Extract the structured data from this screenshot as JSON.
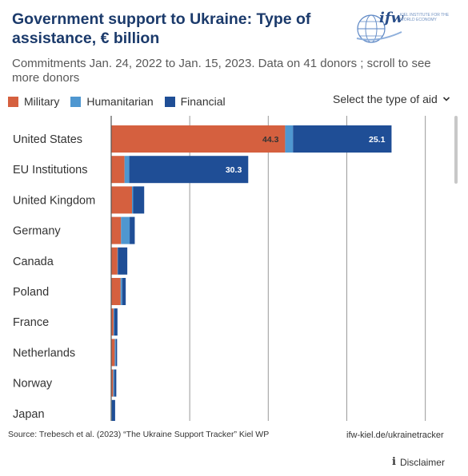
{
  "header": {
    "title": "Government support to Ukraine: Type of assistance, € billion",
    "subtitle": "Commitments Jan. 24, 2022 to Jan. 15, 2023. Data on 41 donors ; scroll to see more donors"
  },
  "logo": {
    "name": "ifw",
    "subtext": "KIEL INSTITUTE FOR THE WORLD ECONOMY",
    "icon": "globe-logo-icon"
  },
  "legend": [
    {
      "label": "Military",
      "color": "#d5603f"
    },
    {
      "label": "Humanitarian",
      "color": "#4f97d0"
    },
    {
      "label": "Financial",
      "color": "#1f4e96"
    }
  ],
  "select": {
    "label": "Select the type of aid",
    "icon": "chevron-down-icon"
  },
  "chart_data": {
    "type": "bar",
    "orientation": "horizontal",
    "stacked": true,
    "categories": [
      "United States",
      "EU Institutions",
      "United Kingdom",
      "Germany",
      "Canada",
      "Poland",
      "France",
      "Netherlands",
      "Norway",
      "Japan"
    ],
    "series": [
      {
        "name": "Military",
        "color": "#d5603f",
        "values": [
          44.3,
          3.4,
          5.3,
          2.5,
          1.6,
          2.4,
          0.6,
          0.9,
          0.5,
          0.0
        ]
      },
      {
        "name": "Humanitarian",
        "color": "#4f97d0",
        "values": [
          2.0,
          1.2,
          0.3,
          2.2,
          0.1,
          0.4,
          0.2,
          0.3,
          0.3,
          0.2
        ]
      },
      {
        "name": "Financial",
        "color": "#1f4e96",
        "values": [
          25.1,
          30.3,
          2.8,
          1.3,
          2.4,
          0.9,
          0.8,
          0.3,
          0.5,
          0.8
        ]
      }
    ],
    "data_labels": [
      {
        "category": "United States",
        "series": "Military",
        "text": "44.3"
      },
      {
        "category": "United States",
        "series": "Financial",
        "text": "25.1"
      },
      {
        "category": "EU Institutions",
        "series": "Financial",
        "text": "30.3"
      }
    ],
    "xlim": [
      0,
      87
    ],
    "gridlines": [
      20,
      40,
      60,
      80
    ],
    "grid": true
  },
  "footer": {
    "source": "Source: Trebesch et al. (2023) “The Ukraine Support Tracker” Kiel WP",
    "url": "ifw-kiel.de/ukrainetracker",
    "disclaimer": "Disclaimer",
    "disclaimer_icon": "info-icon"
  }
}
